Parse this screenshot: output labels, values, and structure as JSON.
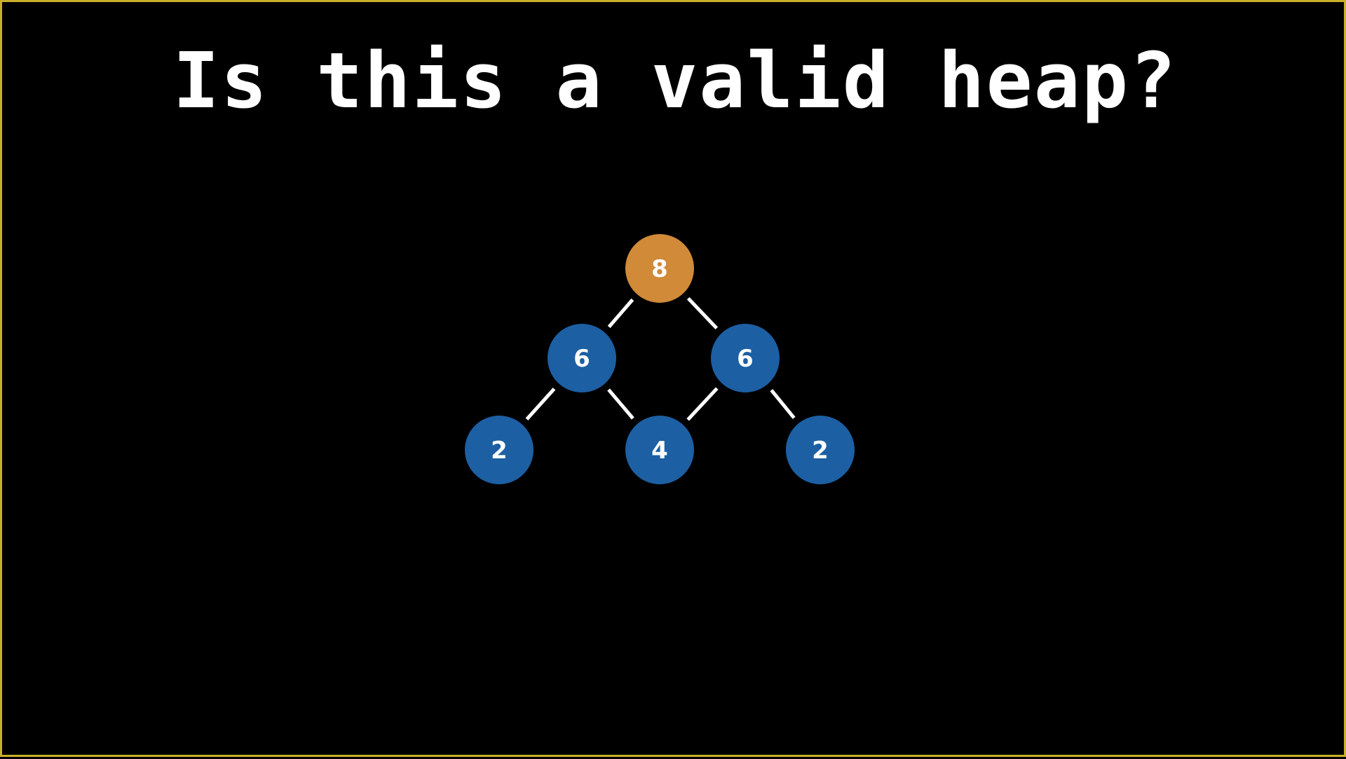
{
  "title": "Is this a valid heap?",
  "colors": {
    "background": "#000000",
    "border": "#c9b02a",
    "root_node": "#d08a38",
    "node": "#1c5fa3",
    "edge": "#ffffff",
    "text": "#ffffff"
  },
  "tree": {
    "nodes": [
      {
        "id": "n0",
        "value": "8",
        "highlight": true
      },
      {
        "id": "n1",
        "value": "6",
        "highlight": false
      },
      {
        "id": "n2",
        "value": "6",
        "highlight": false
      },
      {
        "id": "n3",
        "value": "2",
        "highlight": false
      },
      {
        "id": "n4",
        "value": "4",
        "highlight": false
      },
      {
        "id": "n5",
        "value": "2",
        "highlight": false
      }
    ],
    "edges": [
      {
        "from": "n0",
        "to": "n1"
      },
      {
        "from": "n0",
        "to": "n2"
      },
      {
        "from": "n1",
        "to": "n3"
      },
      {
        "from": "n1",
        "to": "n4"
      },
      {
        "from": "n2",
        "to": "n4"
      },
      {
        "from": "n2",
        "to": "n5"
      }
    ]
  }
}
